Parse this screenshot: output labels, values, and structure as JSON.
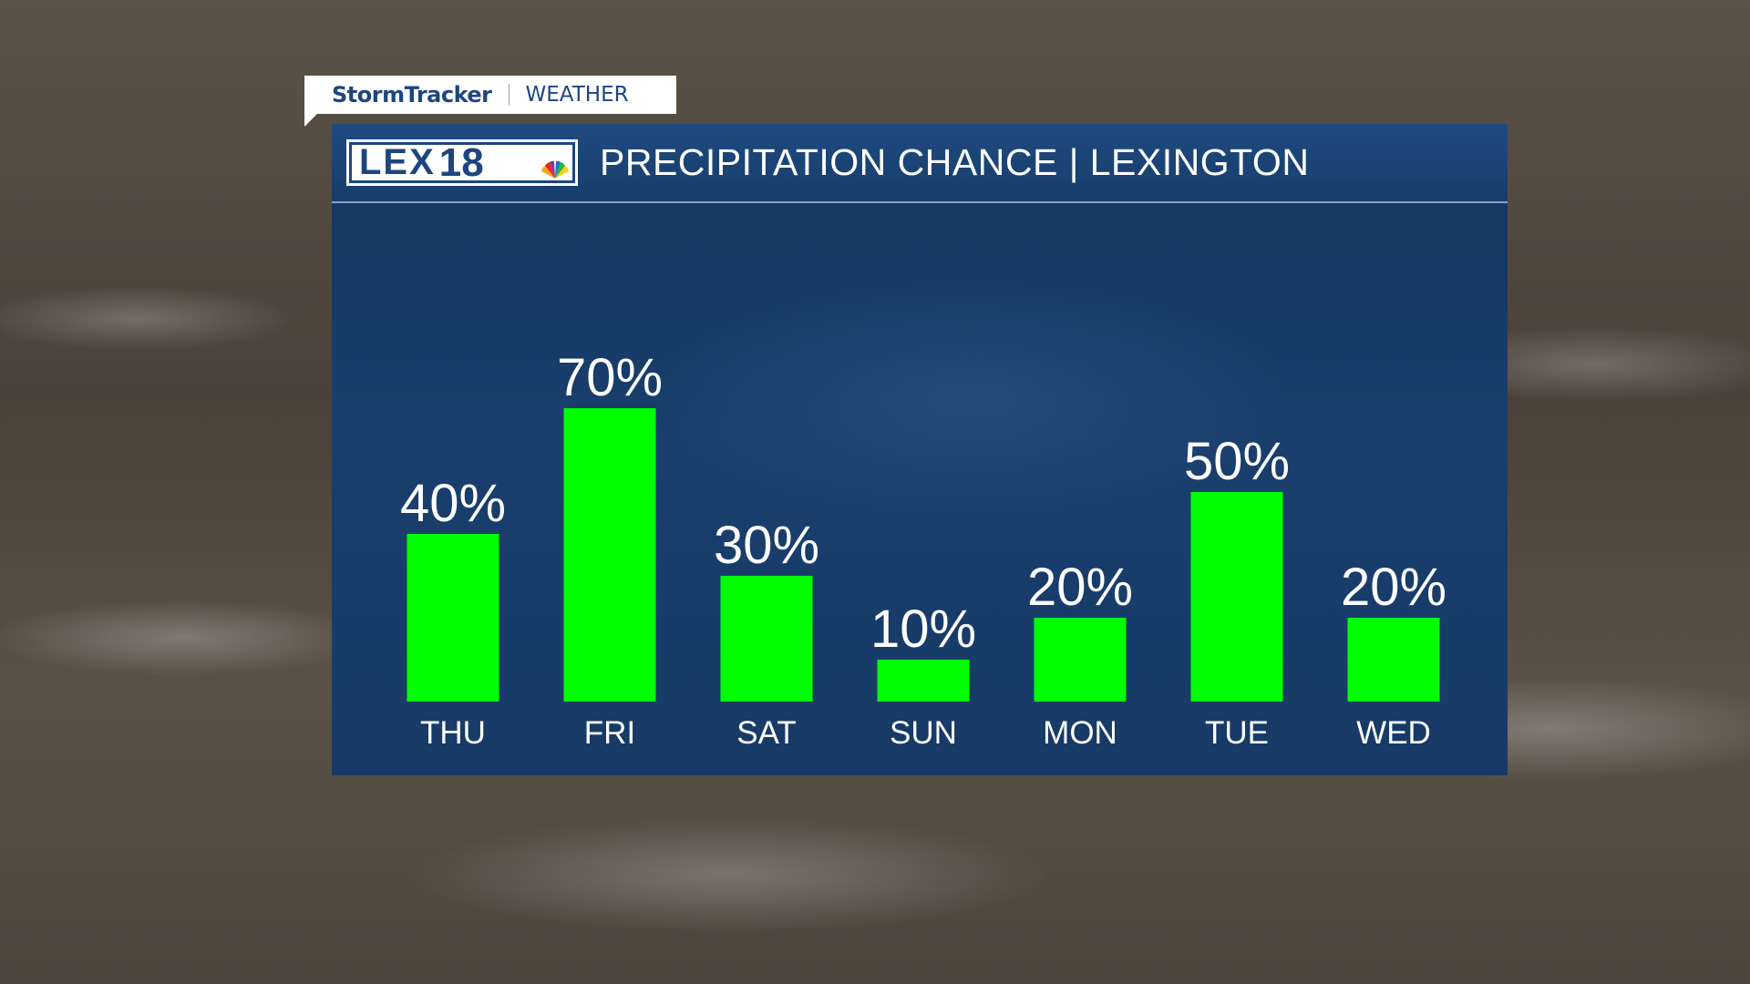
{
  "brand": {
    "tab_primary": "StormTracker",
    "tab_secondary": "WEATHER",
    "logo_text": "LEX18"
  },
  "header": {
    "title": "PRECIPITATION CHANCE | LEXINGTON"
  },
  "colors": {
    "bar": "#00ff00",
    "panel": "#173d6b",
    "text": "#ffffff"
  },
  "chart_data": {
    "type": "bar",
    "categories": [
      "THU",
      "FRI",
      "SAT",
      "SUN",
      "MON",
      "TUE",
      "WED"
    ],
    "values": [
      40,
      70,
      30,
      10,
      20,
      50,
      20
    ],
    "labels": [
      "40%",
      "70%",
      "30%",
      "10%",
      "20%",
      "50%",
      "20%"
    ],
    "ylim": [
      0,
      100
    ],
    "grid": false,
    "title": "PRECIPITATION CHANCE | LEXINGTON"
  }
}
